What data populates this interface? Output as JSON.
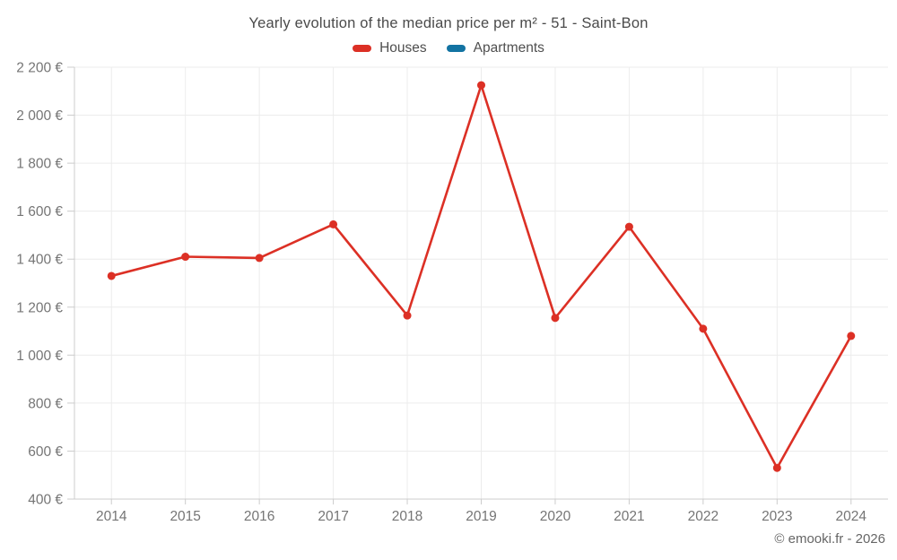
{
  "chart_data": {
    "type": "line",
    "title": "Yearly evolution of the median price per m² - 51 - Saint-Bon",
    "categories": [
      "2014",
      "2015",
      "2016",
      "2017",
      "2018",
      "2019",
      "2020",
      "2021",
      "2022",
      "2023",
      "2024"
    ],
    "series": [
      {
        "name": "Houses",
        "color": "#dc3025",
        "values": [
          1330,
          1410,
          1405,
          1545,
          1165,
          2125,
          1155,
          1535,
          1110,
          530,
          1080
        ]
      },
      {
        "name": "Apartments",
        "color": "#1273a2",
        "values": []
      }
    ],
    "xlabel": "",
    "ylabel": "",
    "ylim": [
      400,
      2200
    ],
    "y_tick_step": 200,
    "y_tick_labels": [
      "400 €",
      "600 €",
      "800 €",
      "1 000 €",
      "1 200 €",
      "1 400 €",
      "1 600 €",
      "1 800 €",
      "2 000 €",
      "2 200 €"
    ],
    "currency_suffix": "€",
    "grid": true,
    "legend_position": "top",
    "footer": "© emooki.fr - 2026"
  },
  "style_colors": {
    "grid": "#ececec",
    "axis": "#cccccc",
    "tick_text": "#757575",
    "title_text": "#4a4a4a"
  }
}
